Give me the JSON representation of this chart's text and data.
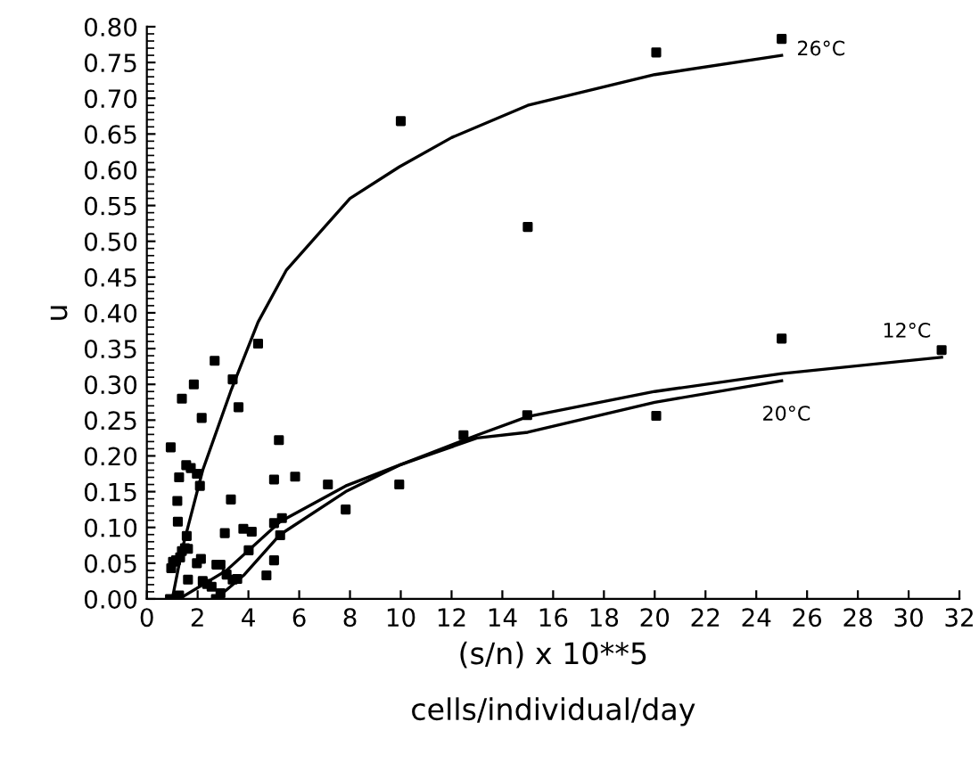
{
  "chart_data": {
    "type": "scatter",
    "xlabel": "(s/n) x 10**5\ncells/individual/day",
    "ylabel": "u",
    "xlim": [
      0,
      32
    ],
    "xticks": [
      0,
      2,
      4,
      6,
      8,
      10,
      12,
      14,
      16,
      18,
      20,
      22,
      24,
      26,
      28,
      30,
      32
    ],
    "ylim": [
      0,
      0.8
    ],
    "yticks": [
      {
        "value": 0,
        "label": "0.00"
      },
      {
        "value": 0.05,
        "label": "0.05"
      },
      {
        "value": 0.1,
        "label": "0.10"
      },
      {
        "value": 0.15,
        "label": "0.15"
      },
      {
        "value": 0.2,
        "label": "0.20"
      },
      {
        "value": 0.25,
        "label": "0.25"
      },
      {
        "value": 0.3,
        "label": "0.30"
      },
      {
        "value": 0.35,
        "label": "0.35"
      },
      {
        "value": 0.4,
        "label": "0.40"
      },
      {
        "value": 0.45,
        "label": "0.45"
      },
      {
        "value": 0.5,
        "label": "0.50"
      },
      {
        "value": 0.55,
        "label": "0.55"
      },
      {
        "value": 0.6,
        "label": "0.60"
      },
      {
        "value": 0.65,
        "label": "0.65"
      },
      {
        "value": 0.7,
        "label": "0.70"
      },
      {
        "value": 0.75,
        "label": "0.75"
      },
      {
        "value": 0.8,
        "label": "0.80"
      }
    ],
    "grid": false,
    "legend": false,
    "series": [
      {
        "marker": "square",
        "color": "#000000",
        "x": [
          0.91,
          0.96,
          1.03,
          1.2,
          1.27,
          1.22,
          1.38,
          0.94,
          1.55,
          1.73,
          1.85,
          1.97,
          2.09,
          2.16,
          2.67,
          3.38,
          3.61,
          4.38,
          1.57,
          1.5,
          1.38,
          1.62,
          1.31,
          1.15,
          1.27,
          1.62,
          1.97,
          2.13,
          2.2,
          2.37,
          2.55,
          2.74,
          2.9,
          2.72,
          2.9,
          3.07,
          3.14,
          3.38,
          3.56,
          3.31,
          3.8,
          4.13,
          4.01,
          4.71,
          5.01,
          5.01,
          5.32,
          5.25,
          5.01,
          5.2,
          5.84,
          7.13,
          7.83,
          9.94,
          12.47,
          14.98,
          10.0,
          15.0,
          20.06,
          25.0,
          25.0,
          20.06,
          31.3
        ],
        "values": [
          0,
          0.043,
          0.052,
          0.137,
          0.17,
          0.108,
          0.28,
          0.212,
          0.187,
          0.183,
          0.3,
          0.175,
          0.158,
          0.253,
          0.333,
          0.307,
          0.268,
          0.357,
          0.088,
          0.071,
          0.067,
          0.07,
          0.058,
          0.054,
          0.005,
          0.027,
          0.05,
          0.056,
          0.025,
          0.021,
          0.017,
          0.048,
          0.048,
          0,
          0.008,
          0.092,
          0.034,
          0.027,
          0.028,
          0.139,
          0.098,
          0.094,
          0.068,
          0.033,
          0.054,
          0.106,
          0.113,
          0.089,
          0.167,
          0.222,
          0.171,
          0.16,
          0.125,
          0.16,
          0.229,
          0.257,
          0.668,
          0.52,
          0.764,
          0.783,
          0.364,
          0.256,
          0.348
        ]
      },
      {
        "type": "line",
        "name": "26°C",
        "color": "#000000",
        "marker": "none",
        "line_style": "solid",
        "x": [
          1.0,
          1.38,
          2.2,
          3.3,
          4.38,
          5.5,
          8,
          9.94,
          12,
          15,
          20,
          25
        ],
        "values": [
          0,
          0.068,
          0.18,
          0.29,
          0.387,
          0.46,
          0.56,
          0.604,
          0.645,
          0.69,
          0.733,
          0.76
        ]
      },
      {
        "type": "line",
        "name": "12°C",
        "color": "#000000",
        "marker": "none",
        "line_style": "solid",
        "x": [
          1.27,
          3.14,
          5.25,
          7.83,
          9.94,
          13,
          15,
          20,
          25,
          31.3
        ],
        "values": [
          0,
          0.04,
          0.108,
          0.158,
          0.187,
          0.229,
          0.255,
          0.29,
          0.315,
          0.338
        ]
      },
      {
        "type": "line",
        "name": "20°C",
        "color": "#000000",
        "marker": "none",
        "line_style": "solid",
        "x": [
          2.72,
          3.84,
          5.25,
          7.83,
          9.94,
          13,
          15,
          20,
          25
        ],
        "values": [
          0,
          0.034,
          0.09,
          0.15,
          0.187,
          0.225,
          0.233,
          0.275,
          0.305
        ]
      }
    ]
  }
}
